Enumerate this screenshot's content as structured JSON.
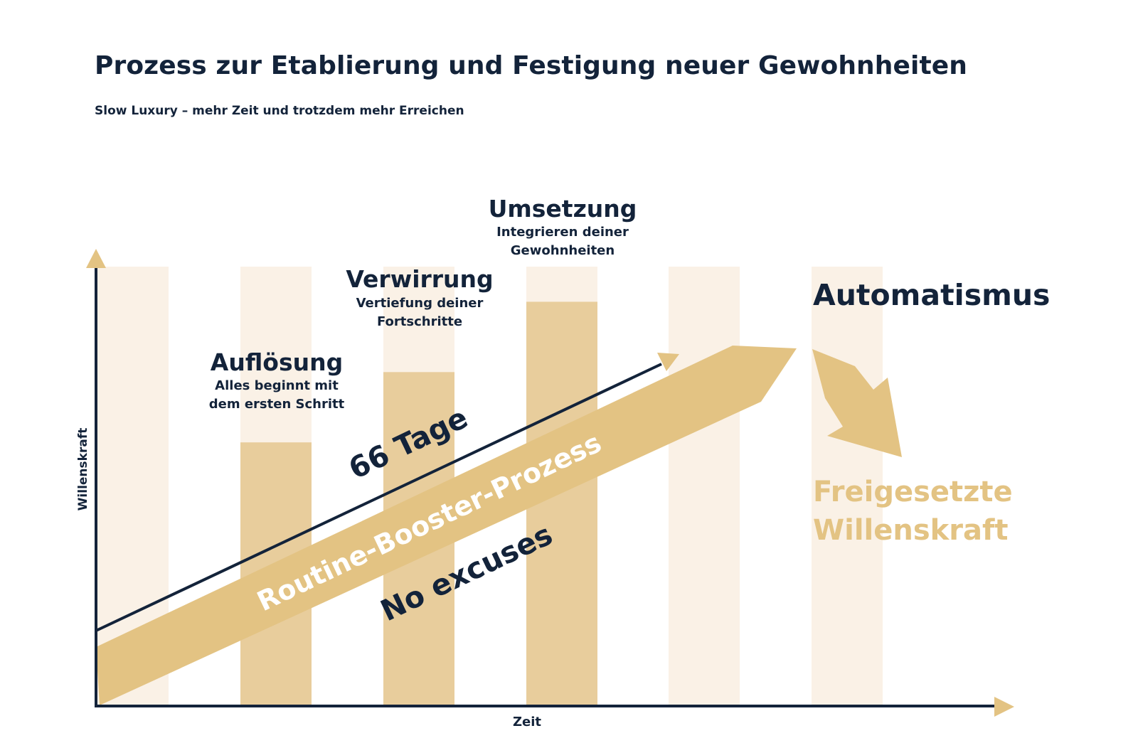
{
  "header": {
    "title": "Prozess zur Etablierung und Festigung neuer Gewohnheiten",
    "subtitle": "Slow Luxury – mehr Zeit und trotzdem mehr Erreichen"
  },
  "axes": {
    "x_label": "Zeit",
    "y_label": "Willenskraft"
  },
  "stages": {
    "aufloesung": {
      "title": "Auflösung",
      "line1": "Alles beginnt mit",
      "line2": "dem ersten Schritt"
    },
    "verwirrung": {
      "title": "Verwirrung",
      "line1": "Vertiefung deiner",
      "line2": "Fortschritte"
    },
    "umsetzung": {
      "title": "Umsetzung",
      "line1": "Integrieren deiner",
      "line2": "Gewohnheiten"
    },
    "automatismus": {
      "title": "Automatismus"
    }
  },
  "arrow_labels": {
    "duration": "66 Tage",
    "process": "Routine-Booster-Prozess",
    "motto": "No excuses"
  },
  "result": {
    "line1": "Freigesetzte",
    "line2": "Willenskraft"
  },
  "bar_levels": [
    0,
    0.6,
    0.76,
    0.92,
    0,
    0
  ],
  "colors": {
    "navy": "#13233a",
    "gold": "#e3c383",
    "bar_fill": "#e8cd9c",
    "bar_bg": "#faf1e6",
    "white": "#ffffff"
  }
}
